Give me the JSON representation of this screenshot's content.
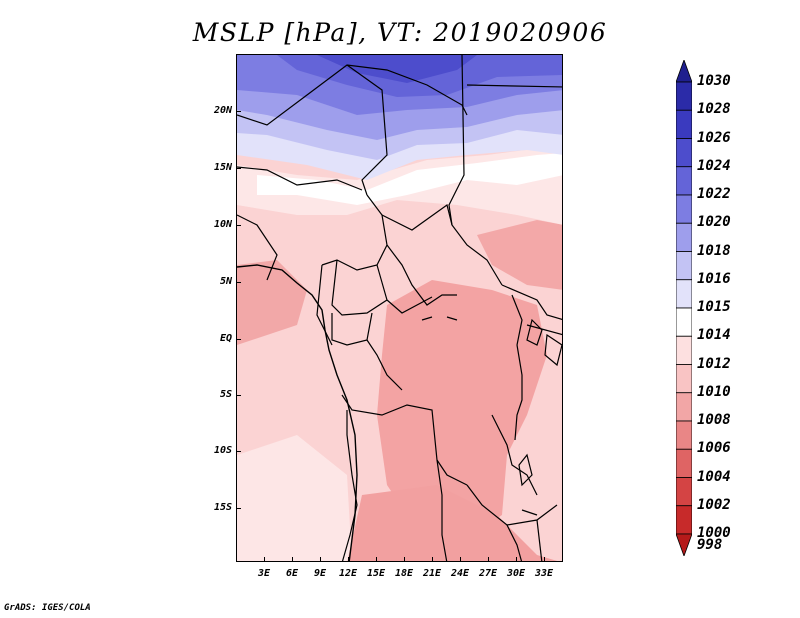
{
  "title": "MSLP [hPa], VT: 2019020906",
  "footer": "GrADS: IGES/COLA",
  "map": {
    "lat_labels": [
      "20N",
      "15N",
      "10N",
      "5N",
      "EQ",
      "5S",
      "10S",
      "15S"
    ],
    "lon_labels": [
      "3E",
      "6E",
      "9E",
      "12E",
      "15E",
      "18E",
      "21E",
      "24E",
      "27E",
      "30E",
      "33E"
    ]
  },
  "legend": {
    "levels": [
      "1030",
      "1028",
      "1026",
      "1024",
      "1022",
      "1020",
      "1018",
      "1016",
      "1015",
      "1014",
      "1012",
      "1010",
      "1008",
      "1006",
      "1004",
      "1002",
      "1000",
      "998"
    ],
    "colors": [
      "#1f1f8e",
      "#2b2ba8",
      "#3a3abf",
      "#4d4dcc",
      "#6464d8",
      "#7d7de2",
      "#9e9eec",
      "#c3c3f4",
      "#e2e2fa",
      "#ffffff",
      "#fde0e0",
      "#f9c4c4",
      "#f2a6a6",
      "#e98686",
      "#df6464",
      "#d44444",
      "#c72a2a",
      "#b51a1a"
    ]
  }
}
